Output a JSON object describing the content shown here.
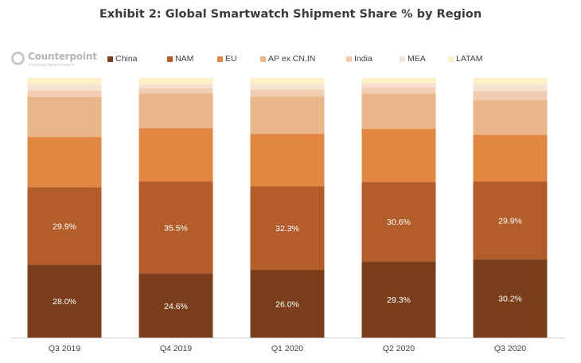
{
  "title": "Exhibit 2: Global Smartwatch Shipment Share % by Region",
  "logo": {
    "name": "Counterpoint",
    "tagline": "Technology Market Research"
  },
  "colors": {
    "China": "#7a3f1a",
    "NAM": "#b35d2a",
    "EU": "#e28743",
    "AP ex CN,IN": "#ebb58a",
    "India": "#f2cdb2",
    "MEA": "#f7e1d0",
    "LATAM": "#fbf0c8"
  },
  "chart_data": {
    "type": "bar",
    "stacked": true,
    "categories": [
      "Q3 2019",
      "Q4 2019",
      "Q1 2020",
      "Q2 2020",
      "Q3 2020"
    ],
    "ylim": [
      0,
      100
    ],
    "grid": false,
    "legend_position": "top",
    "series": [
      {
        "name": "China",
        "values": [
          28.0,
          24.6,
          26.0,
          29.3,
          30.2
        ],
        "labels": [
          "28.0%",
          "24.6%",
          "26.0%",
          "29.3%",
          "30.2%"
        ]
      },
      {
        "name": "NAM",
        "values": [
          29.9,
          35.5,
          32.3,
          30.6,
          29.9
        ],
        "labels": [
          "29.9%",
          "35.5%",
          "32.3%",
          "30.6%",
          "29.9%"
        ]
      },
      {
        "name": "EU",
        "values": [
          19.4,
          20.6,
          20.2,
          20.5,
          18.0
        ]
      },
      {
        "name": "AP ex CN,IN",
        "values": [
          15.4,
          13.3,
          14.3,
          13.5,
          13.3
        ]
      },
      {
        "name": "India",
        "values": [
          2.5,
          2.0,
          2.6,
          2.4,
          3.5
        ]
      },
      {
        "name": "MEA",
        "values": [
          2.2,
          1.6,
          2.0,
          1.7,
          2.5
        ]
      },
      {
        "name": "LATAM",
        "values": [
          2.6,
          2.4,
          2.6,
          2.0,
          2.6
        ]
      }
    ]
  }
}
